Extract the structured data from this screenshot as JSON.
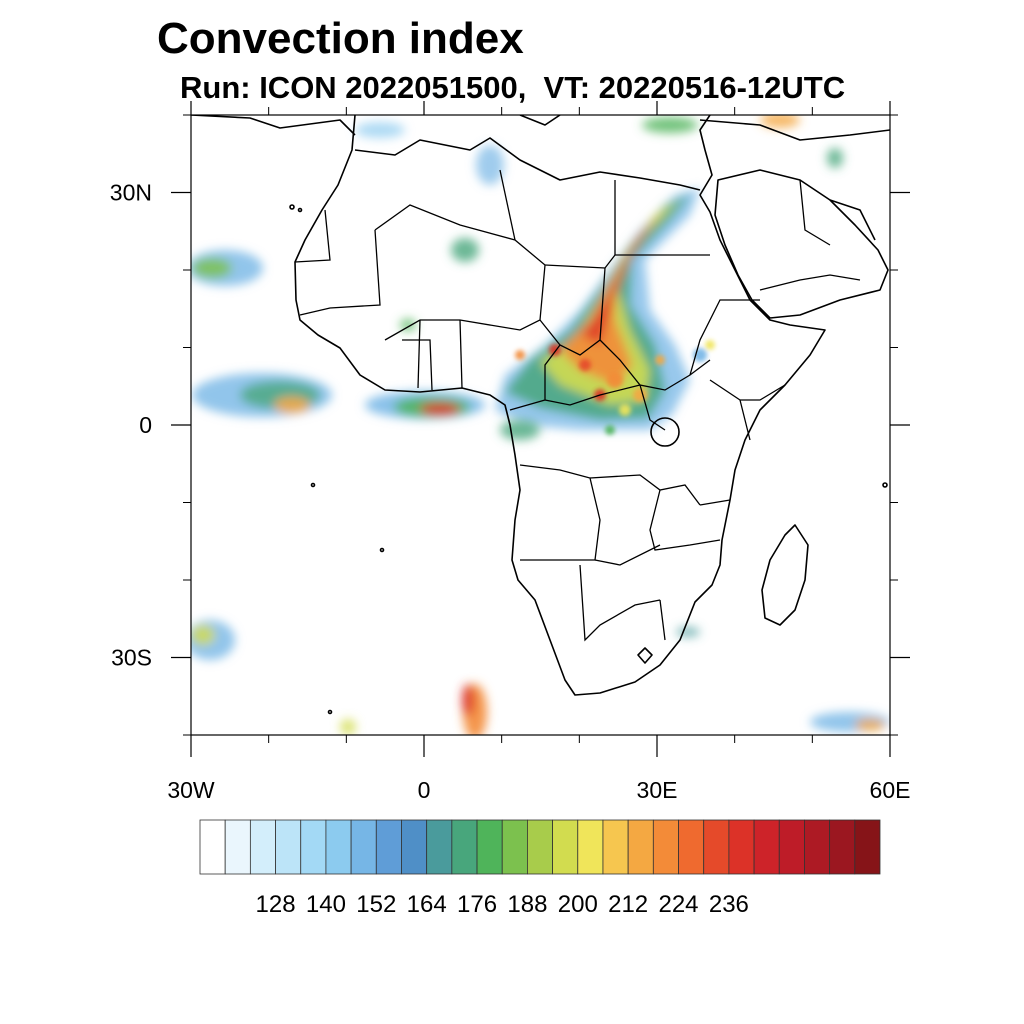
{
  "title": "Convection index",
  "subtitle": "Run: ICON 2022051500,  VT: 20220516-12UTC",
  "map": {
    "lat_ticks": [
      {
        "lat": 30,
        "label": "30N"
      },
      {
        "lat": 0,
        "label": "0"
      },
      {
        "lat": -30,
        "label": "30S"
      }
    ],
    "lon_ticks": [
      {
        "lon": -30,
        "label": "30W"
      },
      {
        "lon": 0,
        "label": "0"
      },
      {
        "lon": 30,
        "label": "30E"
      },
      {
        "lon": 60,
        "label": "60E"
      }
    ],
    "extent": {
      "lon_min": -30,
      "lon_max": 60,
      "lat_min": -40,
      "lat_max": 40
    }
  },
  "colorbar": {
    "colors": [
      "#ffffff",
      "#eaf6fd",
      "#d3eefb",
      "#bce4f8",
      "#a3d9f5",
      "#8ccbef",
      "#76b6e6",
      "#5f9dd7",
      "#4f8fc7",
      "#4a9b9c",
      "#48a67c",
      "#4fb45a",
      "#7cc14e",
      "#a8cc4b",
      "#d2dc4f",
      "#f0e55a",
      "#f6c64f",
      "#f4a842",
      "#f38b38",
      "#ef6a2f",
      "#e54a2a",
      "#dc3228",
      "#cd2329",
      "#be1c28",
      "#ad1a24",
      "#9b1720",
      "#861418"
    ],
    "labels": [
      "128",
      "140",
      "152",
      "164",
      "176",
      "188",
      "200",
      "212",
      "224",
      "236"
    ]
  }
}
